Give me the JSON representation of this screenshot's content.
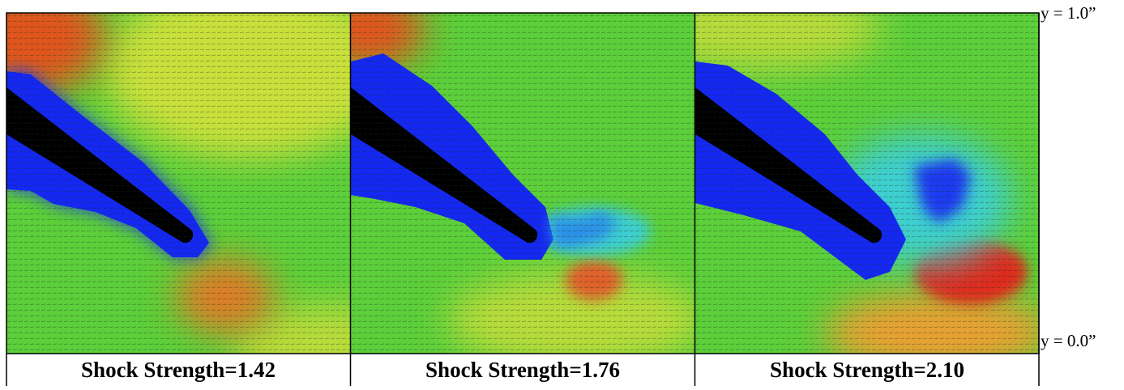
{
  "panels": [
    {
      "caption": "Shock Strength=1.42"
    },
    {
      "caption": "Shock Strength=1.76"
    },
    {
      "caption": "Shock Strength=2.10"
    }
  ],
  "axis_labels": {
    "top": "y = 1.0”",
    "bottom": "y = 0.0”"
  }
}
